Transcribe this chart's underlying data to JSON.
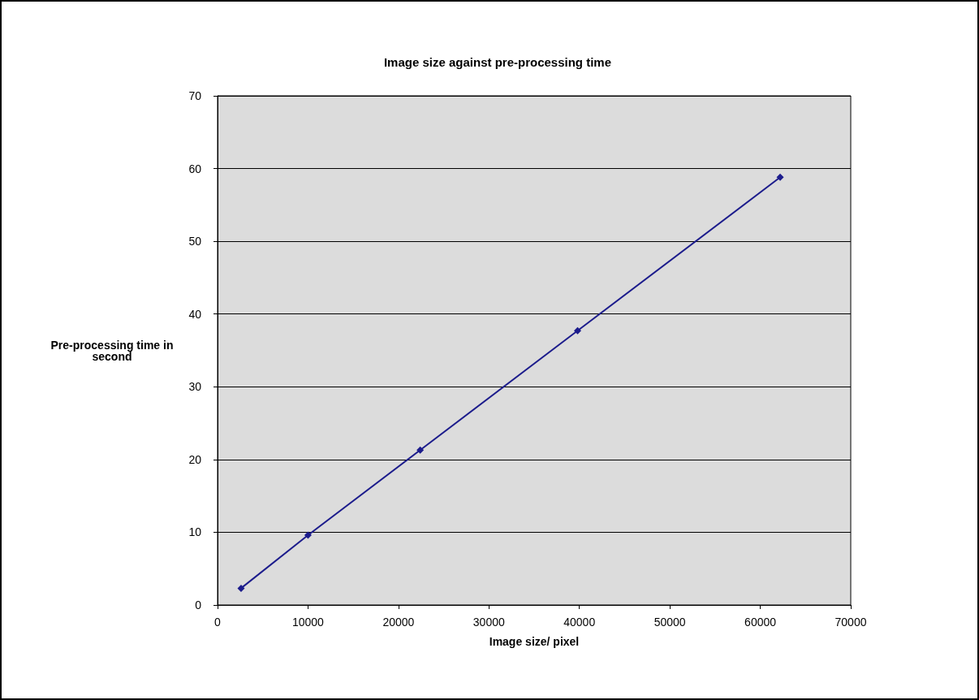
{
  "chart_data": {
    "type": "line",
    "title": "Image size against pre-processing time",
    "xlabel": "Image size/ pixel",
    "ylabel": "Pre-processing time in\nsecond",
    "x": [
      2600,
      10000,
      22400,
      39800,
      62200
    ],
    "series": [
      {
        "color": "#1c1c8c",
        "values": [
          2.3,
          9.6,
          21.3,
          37.7,
          58.8
        ]
      }
    ],
    "xlim": [
      0,
      70000
    ],
    "xticks": [
      0,
      10000,
      20000,
      30000,
      40000,
      50000,
      60000,
      70000
    ],
    "ylim": [
      0,
      70
    ],
    "yticks": [
      0,
      10,
      20,
      30,
      40,
      50,
      60,
      70
    ],
    "grid": "y",
    "marker": "diamond",
    "line_style": "solid"
  }
}
